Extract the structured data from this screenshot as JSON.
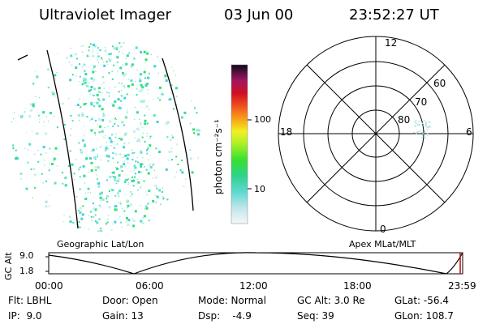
{
  "header": {
    "instrument": "Ultraviolet Imager",
    "date": "03 Jun 00",
    "time": "23:52:27 UT"
  },
  "colorbar": {
    "unit_label": "photon cm⁻²s⁻¹",
    "ticks": [
      "100",
      "10"
    ],
    "scale": "log"
  },
  "polar": {
    "mlt_labels": [
      "12",
      "18",
      "6",
      "0"
    ],
    "lat_labels": [
      "60",
      "70",
      "80"
    ]
  },
  "timeline": {
    "left_title": "Geographic Lat/Lon",
    "right_title": "Apex MLat/MLT",
    "y_axis_label": "GC Alt",
    "y_ticks": [
      "9.0",
      "1.8"
    ],
    "x_ticks": [
      "00:00",
      "06:00",
      "12:00",
      "18:00",
      "23:59"
    ]
  },
  "info": {
    "row1": [
      "Flt: LBHL",
      "Door: Open",
      "Mode: Normal",
      "GC Alt: 3.0 Re",
      "GLat: -56.4"
    ],
    "row2": [
      "IP:  9.0",
      "Gain: 13",
      "Dsp:    -4.9",
      "Seq: 39",
      "GLon: 108.7"
    ]
  }
}
